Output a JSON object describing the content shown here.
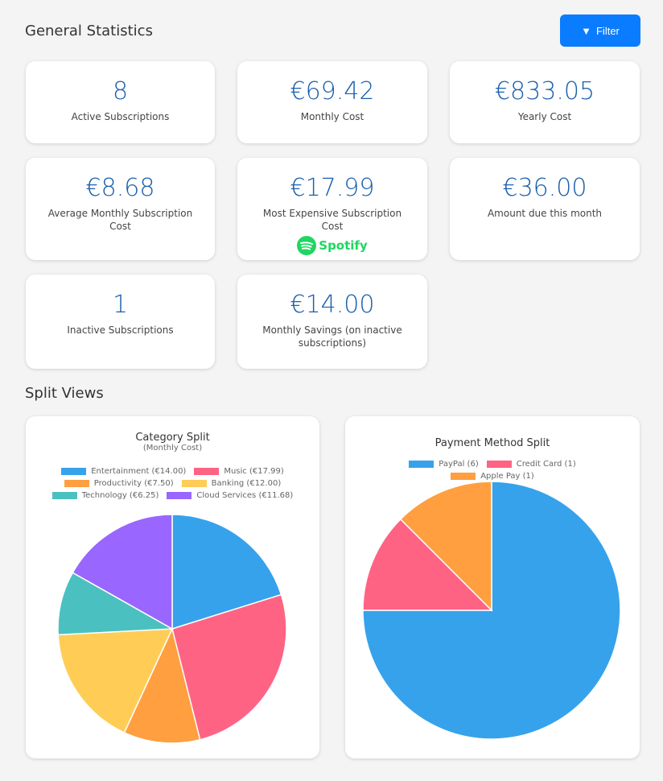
{
  "header": {
    "title": "General Statistics",
    "filter_label": "Filter"
  },
  "stats": [
    {
      "value": "8",
      "label": "Active Subscriptions"
    },
    {
      "value": "€69.42",
      "label": "Monthly Cost"
    },
    {
      "value": "€833.05",
      "label": "Yearly Cost"
    },
    {
      "value": "€8.68",
      "label": "Average Monthly Subscription Cost"
    },
    {
      "value": "€17.99",
      "label": "Most Expensive Subscription Cost",
      "logo": "Spotify"
    },
    {
      "value": "€36.00",
      "label": "Amount due this month"
    },
    {
      "value": "1",
      "label": "Inactive Subscriptions"
    },
    {
      "value": "€14.00",
      "label": "Monthly Savings (on inactive subscriptions)"
    }
  ],
  "split_title": "Split Views",
  "chart_data": [
    {
      "type": "pie",
      "title": "Category Split",
      "subtitle": "(Monthly Cost)",
      "legend": "top",
      "categories": [
        "Entertainment (€14.00)",
        "Music (€17.99)",
        "Productivity (€7.50)",
        "Banking (€12.00)",
        "Technology (€6.25)",
        "Cloud Services (€11.68)"
      ],
      "values": [
        14.0,
        17.99,
        7.5,
        12.0,
        6.25,
        11.68
      ],
      "colors": [
        "#36a2eb",
        "#ff6384",
        "#ff9f40",
        "#ffcd56",
        "#4bc0c0",
        "#9966ff"
      ]
    },
    {
      "type": "pie",
      "title": "Payment Method Split",
      "legend": "top",
      "categories": [
        "PayPal (6)",
        "Credit Card (1)",
        "Apple Pay (1)"
      ],
      "values": [
        6,
        1,
        1
      ],
      "colors": [
        "#36a2eb",
        "#ff6384",
        "#ff9f40"
      ]
    }
  ]
}
